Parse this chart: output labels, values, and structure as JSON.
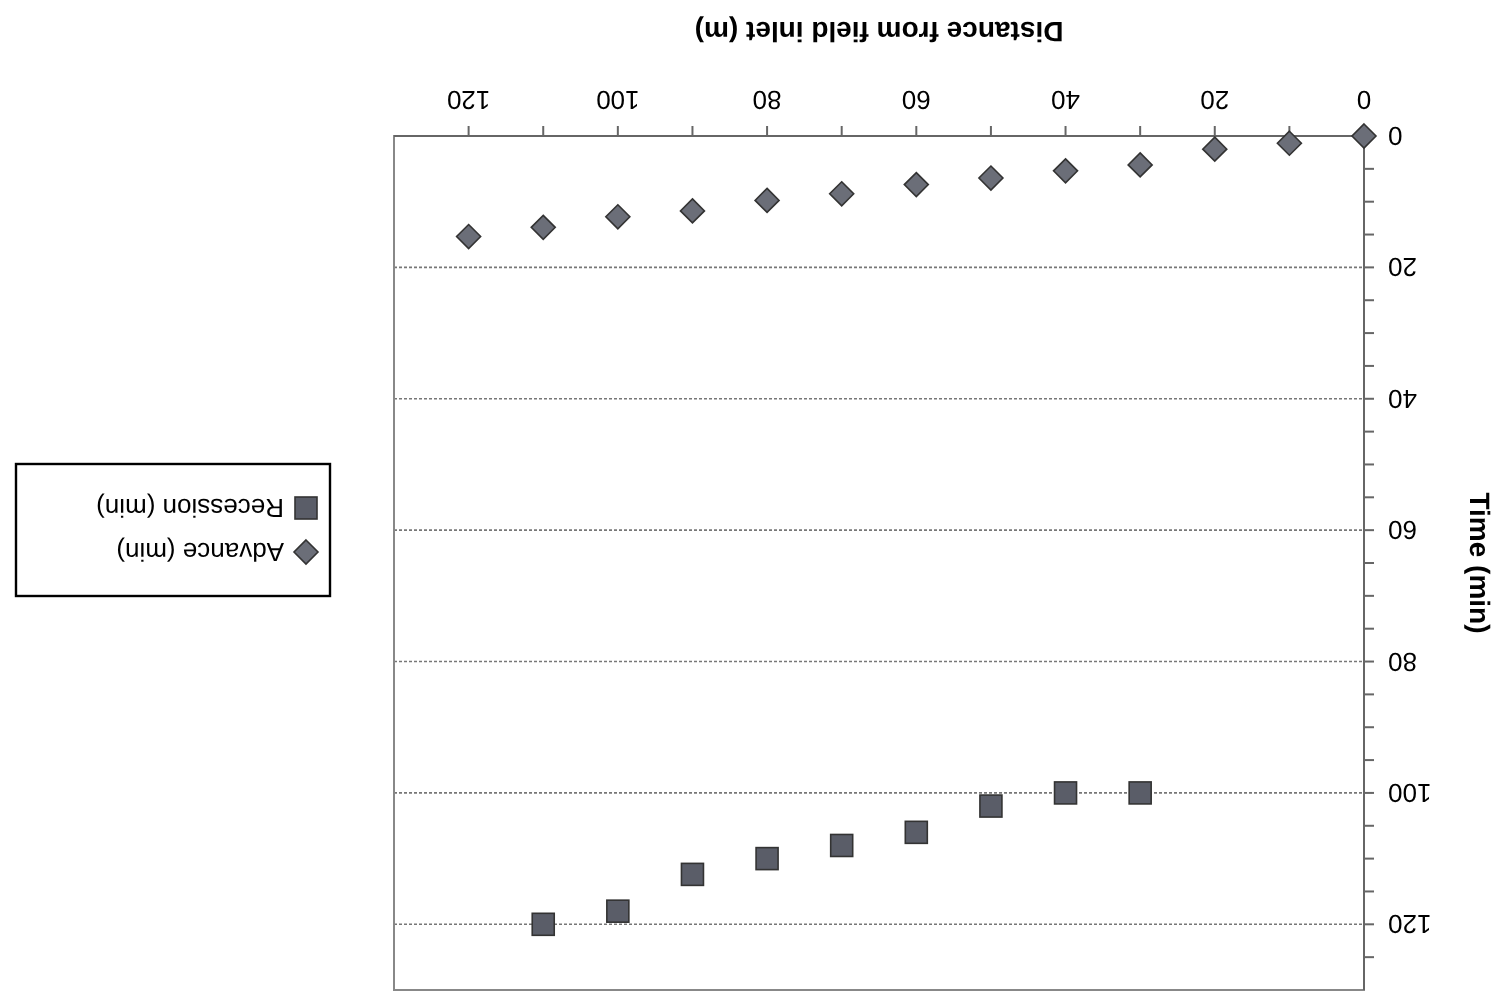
{
  "chart_data": {
    "type": "scatter",
    "xlabel": "Distance from field inlet (m)",
    "ylabel": "Time (min)",
    "xlim": [
      130,
      0
    ],
    "ylim": [
      130,
      0
    ],
    "xticks": [
      0,
      {
        "value": 10,
        "label": null
      },
      20,
      {
        "value": 30,
        "label": null
      },
      40,
      {
        "value": 50,
        "label": null
      },
      60,
      {
        "value": 70,
        "label": null
      },
      80,
      {
        "value": 90,
        "label": null
      },
      100,
      {
        "value": 110,
        "label": null
      },
      120
    ],
    "yticks": [
      0,
      {
        "value": 5,
        "label": null
      },
      {
        "value": 10,
        "label": null
      },
      {
        "value": 15,
        "label": null
      },
      20,
      {
        "value": 25,
        "label": null
      },
      {
        "value": 30,
        "label": null
      },
      {
        "value": 35,
        "label": null
      },
      40,
      {
        "value": 45,
        "label": null
      },
      {
        "value": 50,
        "label": null
      },
      {
        "value": 55,
        "label": null
      },
      60,
      {
        "value": 65,
        "label": null
      },
      {
        "value": 70,
        "label": null
      },
      {
        "value": 75,
        "label": null
      },
      80,
      {
        "value": 85,
        "label": null
      },
      {
        "value": 90,
        "label": null
      },
      {
        "value": 95,
        "label": null
      },
      100,
      {
        "value": 105,
        "label": null
      },
      {
        "value": 110,
        "label": null
      },
      {
        "value": 115,
        "label": null
      },
      120,
      {
        "value": 125,
        "label": null
      }
    ],
    "grid": "y",
    "legend": "left",
    "series": [
      {
        "name": "Advance (min)",
        "color": "#6b6e78",
        "marker": "diamond",
        "x": [
          0,
          10,
          20,
          30,
          40,
          50,
          60,
          70,
          80,
          90,
          100,
          110,
          120
        ],
        "values": [
          0,
          1.1,
          2,
          4.4,
          5.3,
          6.4,
          7.4,
          8.8,
          9.8,
          11.4,
          12.3,
          13.9,
          15.3
        ]
      },
      {
        "name": "Recession (min)",
        "color": "#5a5d68",
        "marker": "square",
        "x": [
          30,
          40,
          50,
          60,
          70,
          80,
          90,
          100,
          110
        ],
        "values": [
          100,
          100,
          102,
          106,
          108,
          110,
          112.4,
          118,
          120
        ]
      }
    ]
  }
}
